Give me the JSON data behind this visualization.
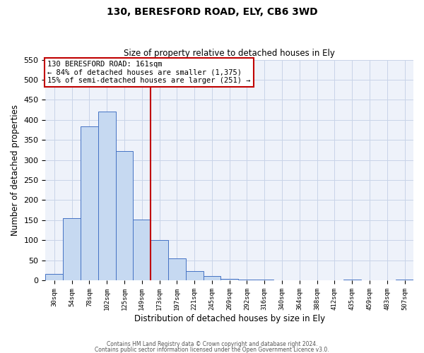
{
  "title_line1": "130, BERESFORD ROAD, ELY, CB6 3WD",
  "title_line2": "Size of property relative to detached houses in Ely",
  "xlabel": "Distribution of detached houses by size in Ely",
  "ylabel": "Number of detached properties",
  "bin_labels": [
    "30sqm",
    "54sqm",
    "78sqm",
    "102sqm",
    "125sqm",
    "149sqm",
    "173sqm",
    "197sqm",
    "221sqm",
    "245sqm",
    "269sqm",
    "292sqm",
    "316sqm",
    "340sqm",
    "364sqm",
    "388sqm",
    "412sqm",
    "435sqm",
    "459sqm",
    "483sqm",
    "507sqm"
  ],
  "bar_values": [
    15,
    155,
    383,
    420,
    322,
    152,
    100,
    55,
    22,
    10,
    4,
    2,
    1,
    0,
    0,
    0,
    0,
    1,
    0,
    0,
    1
  ],
  "bar_color": "#c6d9f1",
  "bar_edge_color": "#4472c4",
  "ylim": [
    0,
    550
  ],
  "yticks": [
    0,
    50,
    100,
    150,
    200,
    250,
    300,
    350,
    400,
    450,
    500,
    550
  ],
  "vline_x": 5.5,
  "vline_color": "#c00000",
  "annotation_box_text": "130 BERESFORD ROAD: 161sqm\n← 84% of detached houses are smaller (1,375)\n15% of semi-detached houses are larger (251) →",
  "footer_line1": "Contains HM Land Registry data © Crown copyright and database right 2024.",
  "footer_line2": "Contains public sector information licensed under the Open Government Licence v3.0.",
  "grid_color": "#c8d4e8",
  "background_color": "#eef2fa"
}
